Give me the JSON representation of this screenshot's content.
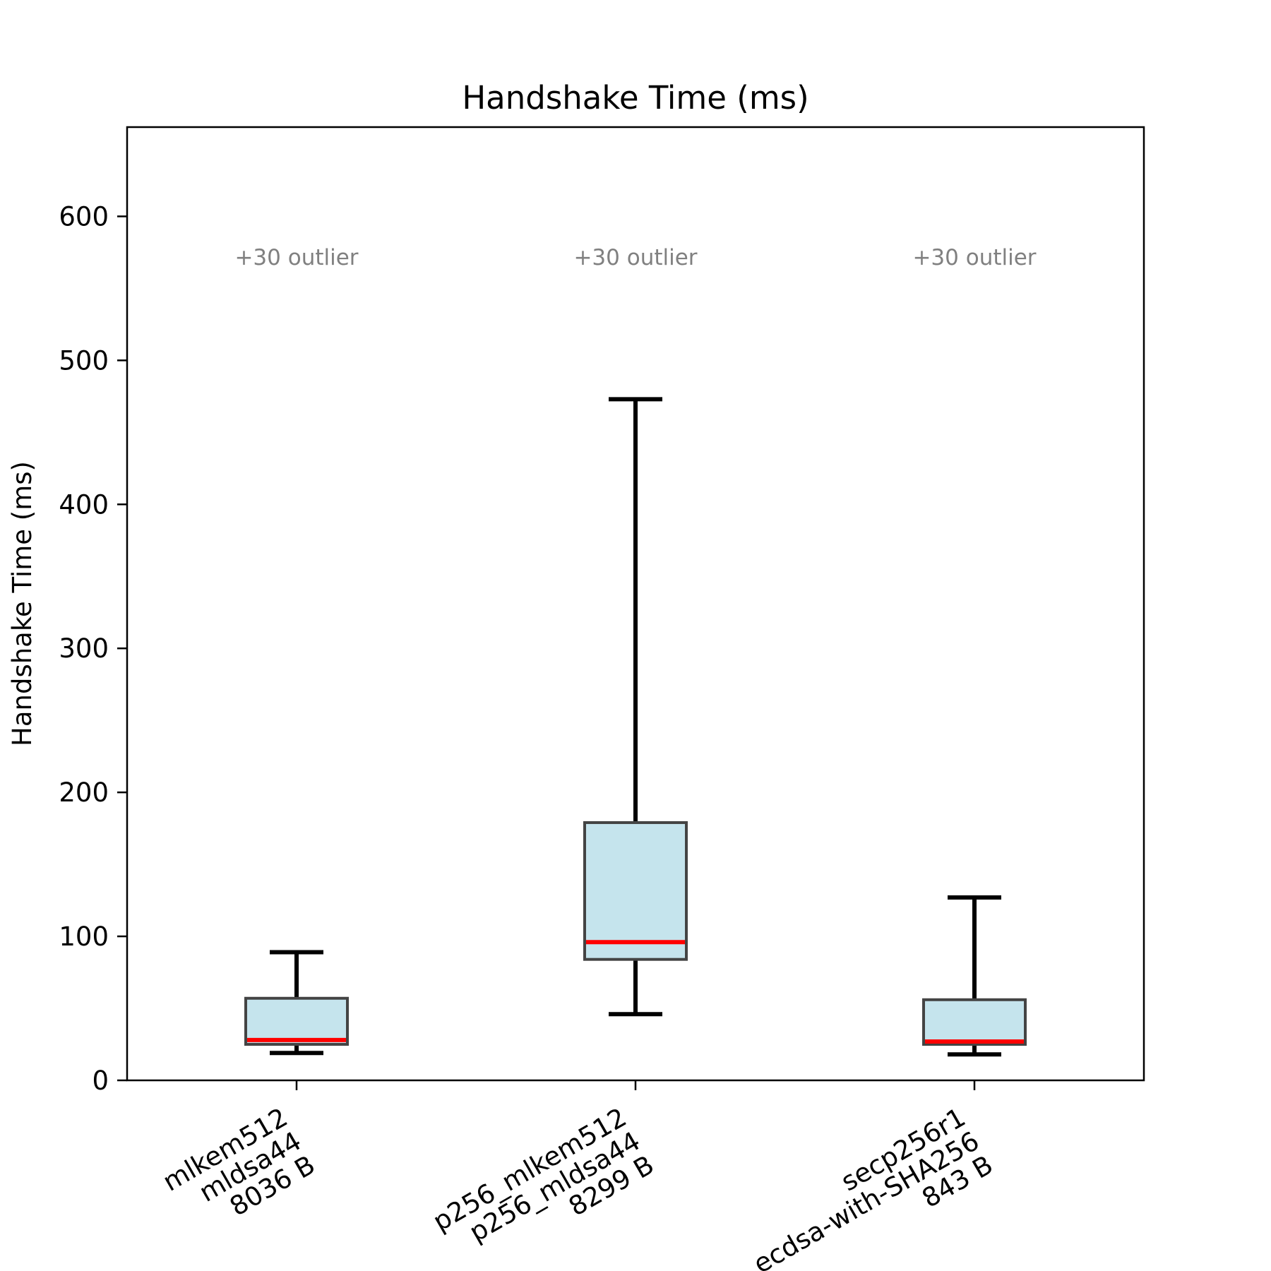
{
  "chart_data": {
    "type": "box",
    "title": "Handshake Time (ms)",
    "xlabel": "",
    "ylabel": "Handshake Time (ms)",
    "ylim": [
      0,
      662
    ],
    "yticks": [
      0,
      100,
      200,
      300,
      400,
      500,
      600
    ],
    "grid": false,
    "colors": {
      "box_fill": "#add8e6",
      "box_edge": "#444444",
      "median": "#ff0000",
      "whisker": "#000000",
      "annotation": "#808080"
    },
    "categories": [
      {
        "lines": [
          "mlkem512",
          "mldsa44",
          "8036 B"
        ],
        "whisker_low": 19,
        "q1": 25,
        "median": 28,
        "q3": 57,
        "whisker_high": 89,
        "annotation": "+30 outlier"
      },
      {
        "lines": [
          "p256_mlkem512",
          "p256_mldsa44",
          "8299 B"
        ],
        "whisker_low": 46,
        "q1": 84,
        "median": 96,
        "q3": 179,
        "whisker_high": 473,
        "annotation": "+30 outlier"
      },
      {
        "lines": [
          "secp256r1",
          "ecdsa-with-SHA256",
          "843 B"
        ],
        "whisker_low": 18,
        "q1": 25,
        "median": 27,
        "q3": 56,
        "whisker_high": 127,
        "annotation": "+30 outlier"
      }
    ]
  }
}
